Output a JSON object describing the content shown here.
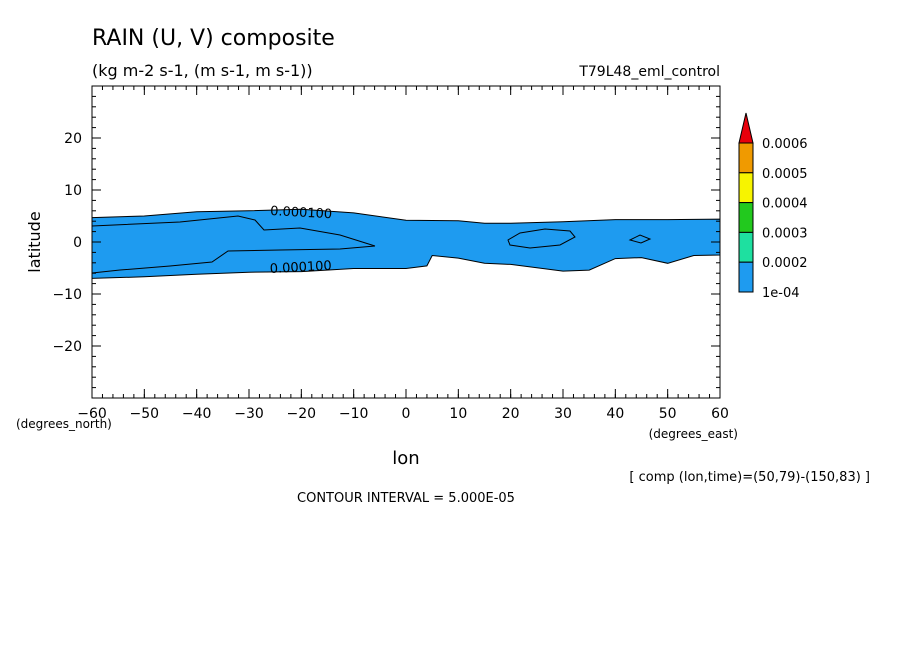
{
  "chart_data": {
    "type": "contour",
    "title": "RAIN (U, V) composite",
    "subtitle": "(kg m-2 s-1, (m s-1, m s-1))",
    "experiment": "T79L48_eml_control",
    "xlabel": "lon",
    "ylabel": "latitude",
    "x_unit": "(degrees_east)",
    "y_unit": "(degrees_north)",
    "xlim": [
      -60,
      60
    ],
    "ylim": [
      -30,
      30
    ],
    "x_ticks": [
      -60,
      -50,
      -40,
      -30,
      -20,
      -10,
      0,
      10,
      20,
      30,
      40,
      50,
      60
    ],
    "y_ticks": [
      20,
      10,
      0,
      -10,
      -20
    ],
    "contour_labels": [
      "0.000100",
      "0.000100"
    ],
    "colorbar": {
      "levels": [
        "0.0006",
        "0.0005",
        "0.0004",
        "0.0003",
        "0.0002",
        "1e-04"
      ],
      "colors": [
        "#f09a00",
        "#f7f400",
        "#22c91e",
        "#1ee0a0",
        "#1e9bf0",
        "#e8000b"
      ]
    },
    "rain_region_1e-04": {
      "north_edge": [
        [
          -60,
          4.7
        ],
        [
          -50,
          5.0
        ],
        [
          -40,
          5.8
        ],
        [
          -30,
          6.0
        ],
        [
          -20,
          6.3
        ],
        [
          -10,
          5.6
        ],
        [
          0,
          4.2
        ],
        [
          10,
          4.1
        ],
        [
          15,
          3.6
        ],
        [
          20,
          3.6
        ],
        [
          30,
          3.9
        ],
        [
          40,
          4.3
        ],
        [
          50,
          4.3
        ],
        [
          60,
          4.4
        ]
      ],
      "south_edge": [
        [
          -60,
          -7.0
        ],
        [
          -50,
          -6.7
        ],
        [
          -40,
          -6.2
        ],
        [
          -30,
          -5.8
        ],
        [
          -20,
          -5.7
        ],
        [
          -10,
          -5.1
        ],
        [
          0,
          -5.1
        ],
        [
          4,
          -4.6
        ],
        [
          5,
          -2.6
        ],
        [
          10,
          -3.1
        ],
        [
          15,
          -4.1
        ],
        [
          20,
          -4.3
        ],
        [
          30,
          -5.6
        ],
        [
          35,
          -5.4
        ],
        [
          40,
          -3.2
        ],
        [
          45,
          -3.0
        ],
        [
          50,
          -4.1
        ],
        [
          55,
          -2.6
        ],
        [
          60,
          -2.5
        ]
      ]
    },
    "footer_range": "[ comp (lon,time)=(50,79)-(150,83) ]",
    "contour_interval": "CONTOUR INTERVAL = 5.000E-05"
  }
}
